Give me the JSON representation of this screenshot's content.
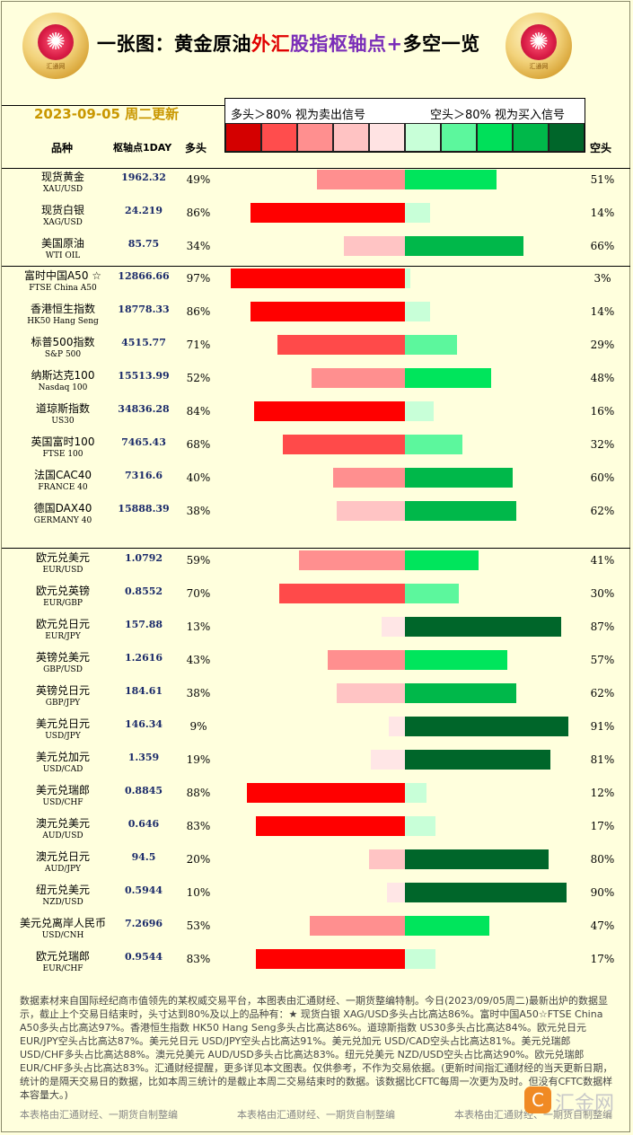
{
  "header": {
    "title_parts": [
      "一张图：黄金原油",
      "外汇",
      "股指枢轴点+",
      "多空一览"
    ],
    "date": "2023-09-05 周二更新",
    "logo_left_caption": "汇通网",
    "logo_right_caption": "汇通网"
  },
  "legend": {
    "left_text": "多头＞80% 视为卖出信号",
    "right_text": "空头＞80% 视为买入信号",
    "swatches": [
      "#d40000",
      "#ff4d4d",
      "#ff8f8f",
      "#ffc3c3",
      "#ffe3e3",
      "#c8ffd8",
      "#5cf79d",
      "#00e05a",
      "#00b84a",
      "#00662a"
    ]
  },
  "columns": {
    "name": "品种",
    "pivot": "枢轴点1DAY",
    "long": "多头",
    "short": "空头"
  },
  "chart_data": {
    "type": "bar",
    "title": "",
    "xlabel": "",
    "ylabel": "",
    "xlim": [
      0,
      100
    ],
    "groups": [
      {
        "rows": [
          {
            "zh": "现货黄金",
            "en": "XAU/USD",
            "pivot": "1962.32",
            "long": 49,
            "short": 51
          },
          {
            "zh": "现货白银",
            "en": "XAG/USD",
            "pivot": "24.219",
            "long": 86,
            "short": 14
          },
          {
            "zh": "美国原油",
            "en": "WTI OIL",
            "pivot": "85.75",
            "long": 34,
            "short": 66
          }
        ]
      },
      {
        "rows": [
          {
            "zh": "富时中国A50 ☆",
            "en": "FTSE China A50",
            "pivot": "12866.66",
            "long": 97,
            "short": 3
          },
          {
            "zh": "香港恒生指数",
            "en": "HK50 Hang Seng",
            "pivot": "18778.33",
            "long": 86,
            "short": 14
          },
          {
            "zh": "标普500指数",
            "en": "S&P 500",
            "pivot": "4515.77",
            "long": 71,
            "short": 29
          },
          {
            "zh": "纳斯达克100",
            "en": "Nasdaq 100",
            "pivot": "15513.99",
            "long": 52,
            "short": 48
          },
          {
            "zh": "道琼斯指数",
            "en": "US30",
            "pivot": "34836.28",
            "long": 84,
            "short": 16
          },
          {
            "zh": "英国富时100",
            "en": "FTSE 100",
            "pivot": "7465.43",
            "long": 68,
            "short": 32
          },
          {
            "zh": "法国CAC40",
            "en": "FRANCE 40",
            "pivot": "7316.6",
            "long": 40,
            "short": 60
          },
          {
            "zh": "德国DAX40",
            "en": "GERMANY 40",
            "pivot": "15888.39",
            "long": 38,
            "short": 62
          }
        ]
      },
      {
        "rows": [
          {
            "zh": "欧元兑美元",
            "en": "EUR/USD",
            "pivot": "1.0792",
            "long": 59,
            "short": 41
          },
          {
            "zh": "欧元兑英镑",
            "en": "EUR/GBP",
            "pivot": "0.8552",
            "long": 70,
            "short": 30
          },
          {
            "zh": "欧元兑日元",
            "en": "EUR/JPY",
            "pivot": "157.88",
            "long": 13,
            "short": 87
          },
          {
            "zh": "英镑兑美元",
            "en": "GBP/USD",
            "pivot": "1.2616",
            "long": 43,
            "short": 57
          },
          {
            "zh": "英镑兑日元",
            "en": "GBP/JPY",
            "pivot": "184.61",
            "long": 38,
            "short": 62
          },
          {
            "zh": "美元兑日元",
            "en": "USD/JPY",
            "pivot": "146.34",
            "long": 9,
            "short": 91
          },
          {
            "zh": "美元兑加元",
            "en": "USD/CAD",
            "pivot": "1.359",
            "long": 19,
            "short": 81
          },
          {
            "zh": "美元兑瑞郎",
            "en": "USD/CHF",
            "pivot": "0.8845",
            "long": 88,
            "short": 12
          },
          {
            "zh": "澳元兑美元",
            "en": "AUD/USD",
            "pivot": "0.646",
            "long": 83,
            "short": 17
          },
          {
            "zh": "澳元兑日元",
            "en": "AUD/JPY",
            "pivot": "94.5",
            "long": 20,
            "short": 80
          },
          {
            "zh": "纽元兑美元",
            "en": "NZD/USD",
            "pivot": "0.5944",
            "long": 10,
            "short": 90
          },
          {
            "zh": "美元兑离岸人民币",
            "en": "USD/CNH",
            "pivot": "7.2696",
            "long": 53,
            "short": 47
          },
          {
            "zh": "欧元兑瑞郎",
            "en": "EUR/CHF",
            "pivot": "0.9544",
            "long": 83,
            "short": 17
          }
        ]
      }
    ]
  },
  "footer": {
    "text": "数据素材来自国际经纪商市值领先的某权威交易平台，本图表由汇通财经、一期货整编特制。今日(2023/09/05周二)最新出炉的数据显示，截止上个交易日结束时，头寸达到80%及以上的品种有：★ 现货白银 XAG/USD多头占比高达86%。富时中国A50☆FTSE China A50多头占比高达97%。香港恒生指数 HK50 Hang Seng多头占比高达86%。道琼斯指数 US30多头占比高达84%。欧元兑日元 EUR/JPY空头占比高达87%。美元兑日元 USD/JPY空头占比高达91%。美元兑加元 USD/CAD空头占比高达81%。美元兑瑞郎 USD/CHF多头占比高达88%。澳元兑美元 AUD/USD多头占比高达83%。纽元兑美元 NZD/USD空头占比高达90%。欧元兑瑞郎 EUR/CHF多头占比高达83%。汇通财经提醒，更多详见本文图表。仅供参考，不作为交易依据。(更新时间指汇通财经的当天更新日期，统计的是隔天交易日的数据，比如本周三统计的是截止本周二交易结束时的数据。该数据比CFTC每周一次更为及时。但没有CFTC数据样本容量大。)",
    "credit": "本表格由汇通财经、一期货自制整编",
    "watermark": "汇金网"
  }
}
